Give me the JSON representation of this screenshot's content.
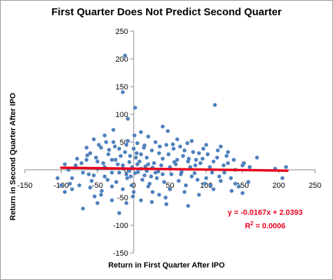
{
  "chart_data": {
    "type": "scatter",
    "title": "First Quarter Does Not Predict Second Quarter",
    "xlabel": "Return in First Quarter After IPO",
    "ylabel": "Return in Second Quarter After IPO",
    "xlim": [
      -150,
      250
    ],
    "ylim": [
      -150,
      250
    ],
    "xticks": [
      -150,
      -100,
      -50,
      0,
      50,
      100,
      150,
      200,
      250
    ],
    "yticks": [
      -150,
      -100,
      -50,
      0,
      50,
      100,
      150,
      200,
      250
    ],
    "xtick_labels": [
      "-150",
      "-100",
      "-50",
      "0",
      "50",
      "100",
      "150",
      "200",
      "250"
    ],
    "ytick_labels": [
      "-150",
      "-100",
      "-50",
      "0",
      "50",
      "100",
      "150",
      "200",
      "250"
    ],
    "grid": false,
    "marker_color": "#4f81bd",
    "trendline": {
      "slope": -0.0167,
      "intercept": 2.0393,
      "x_range": [
        -100,
        212
      ],
      "color": "#e8001c",
      "equation": "y = -0.0167x + 2.0393",
      "r2_label": "R",
      "r2_sup": "2",
      "r2_value": " = 0.0006"
    },
    "points": [
      [
        -12,
        206
      ],
      [
        -15,
        140
      ],
      [
        2,
        112
      ],
      [
        -8,
        92
      ],
      [
        40,
        78
      ],
      [
        112,
        117
      ],
      [
        -28,
        72
      ],
      [
        47,
        70
      ],
      [
        10,
        68
      ],
      [
        -40,
        62
      ],
      [
        20,
        60
      ],
      [
        60,
        55
      ],
      [
        -55,
        55
      ],
      [
        80,
        52
      ],
      [
        -28,
        50
      ],
      [
        30,
        50
      ],
      [
        5,
        48
      ],
      [
        -10,
        45
      ],
      [
        15,
        44
      ],
      [
        45,
        45
      ],
      [
        100,
        45
      ],
      [
        -45,
        40
      ],
      [
        -20,
        38
      ],
      [
        0,
        38
      ],
      [
        25,
        35
      ],
      [
        55,
        38
      ],
      [
        70,
        35
      ],
      [
        90,
        30
      ],
      [
        -60,
        30
      ],
      [
        -35,
        28
      ],
      [
        35,
        30
      ],
      [
        10,
        28
      ],
      [
        -5,
        25
      ],
      [
        120,
        42
      ],
      [
        170,
        22
      ],
      [
        130,
        32
      ],
      [
        -65,
        18
      ],
      [
        -80,
        8
      ],
      [
        -50,
        15
      ],
      [
        -25,
        18
      ],
      [
        40,
        20
      ],
      [
        60,
        18
      ],
      [
        75,
        15
      ],
      [
        95,
        20
      ],
      [
        110,
        15
      ],
      [
        130,
        12
      ],
      [
        150,
        8
      ],
      [
        -40,
        5
      ],
      [
        -15,
        8
      ],
      [
        20,
        10
      ],
      [
        50,
        5
      ],
      [
        85,
        8
      ],
      [
        105,
        5
      ],
      [
        125,
        -5
      ],
      [
        140,
        0
      ],
      [
        160,
        5
      ],
      [
        -70,
        -5
      ],
      [
        -55,
        -10
      ],
      [
        -30,
        -5
      ],
      [
        -10,
        -8
      ],
      [
        15,
        -10
      ],
      [
        30,
        -5
      ],
      [
        65,
        -8
      ],
      [
        80,
        -12
      ],
      [
        100,
        -15
      ],
      [
        120,
        -20
      ],
      [
        140,
        -25
      ],
      [
        195,
        2
      ],
      [
        205,
        -15
      ],
      [
        210,
        5
      ],
      [
        -85,
        -35
      ],
      [
        -95,
        -40
      ],
      [
        -75,
        -28
      ],
      [
        -60,
        -32
      ],
      [
        -45,
        -45
      ],
      [
        -30,
        -30
      ],
      [
        -15,
        -35
      ],
      [
        0,
        -40
      ],
      [
        20,
        -30
      ],
      [
        35,
        -45
      ],
      [
        50,
        -35
      ],
      [
        70,
        -40
      ],
      [
        90,
        -45
      ],
      [
        110,
        -35
      ],
      [
        135,
        -38
      ],
      [
        150,
        -42
      ],
      [
        -70,
        -70
      ],
      [
        -50,
        -60
      ],
      [
        -30,
        -55
      ],
      [
        -10,
        -60
      ],
      [
        10,
        -55
      ],
      [
        25,
        -58
      ],
      [
        45,
        -62
      ],
      [
        75,
        -65
      ],
      [
        -20,
        -78
      ],
      [
        -95,
        10
      ],
      [
        -90,
        0
      ],
      [
        -85,
        -15
      ],
      [
        -65,
        40
      ],
      [
        -48,
        45
      ],
      [
        -38,
        50
      ],
      [
        -52,
        22
      ],
      [
        -42,
        12
      ],
      [
        -36,
        -18
      ],
      [
        -24,
        -22
      ],
      [
        -18,
        25
      ],
      [
        -8,
        52
      ],
      [
        4,
        30
      ],
      [
        8,
        15
      ],
      [
        12,
        -18
      ],
      [
        18,
        22
      ],
      [
        22,
        -25
      ],
      [
        28,
        12
      ],
      [
        32,
        -15
      ],
      [
        38,
        8
      ],
      [
        42,
        -22
      ],
      [
        48,
        28
      ],
      [
        52,
        -8
      ],
      [
        58,
        10
      ],
      [
        62,
        -20
      ],
      [
        68,
        25
      ],
      [
        72,
        -28
      ],
      [
        78,
        5
      ],
      [
        82,
        32
      ],
      [
        88,
        -18
      ],
      [
        92,
        12
      ],
      [
        98,
        -25
      ],
      [
        102,
        28
      ],
      [
        108,
        -5
      ],
      [
        115,
        22
      ],
      [
        118,
        -12
      ],
      [
        124,
        8
      ],
      [
        128,
        25
      ],
      [
        134,
        -15
      ],
      [
        138,
        18
      ],
      [
        145,
        -30
      ],
      [
        152,
        12
      ],
      [
        158,
        -22
      ],
      [
        -2,
        5
      ],
      [
        -4,
        -12
      ],
      [
        6,
        -4
      ],
      [
        -6,
        14
      ],
      [
        3,
        22
      ],
      [
        -3,
        -28
      ],
      [
        1,
        62
      ],
      [
        -1,
        -48
      ],
      [
        14,
        40
      ],
      [
        -12,
        32
      ],
      [
        26,
        -40
      ],
      [
        -26,
        42
      ],
      [
        36,
        42
      ],
      [
        -34,
        36
      ],
      [
        44,
        -50
      ],
      [
        -44,
        -38
      ],
      [
        54,
        46
      ],
      [
        -54,
        -48
      ],
      [
        64,
        42
      ],
      [
        -64,
        26
      ],
      [
        74,
        48
      ],
      [
        -58,
        -20
      ],
      [
        86,
        18
      ],
      [
        -78,
        20
      ],
      [
        96,
        38
      ],
      [
        -88,
        -25
      ],
      [
        106,
        -28
      ],
      [
        -100,
        -28
      ],
      [
        116,
        35
      ],
      [
        -72,
        12
      ],
      [
        -105,
        -15
      ],
      [
        -20,
        -5
      ],
      [
        -14,
        2
      ],
      [
        -6,
        -2
      ],
      [
        2,
        -6
      ],
      [
        10,
        2
      ],
      [
        18,
        -2
      ],
      [
        26,
        4
      ],
      [
        34,
        -3
      ],
      [
        5,
        10
      ],
      [
        -9,
        -15
      ],
      [
        16,
        6
      ],
      [
        -22,
        10
      ],
      [
        24,
        -12
      ],
      [
        -30,
        18
      ],
      [
        40,
        -8
      ],
      [
        -40,
        -12
      ],
      [
        56,
        14
      ],
      [
        -50,
        2
      ],
      [
        66,
        -4
      ],
      [
        -62,
        -8
      ],
      [
        76,
        20
      ],
      [
        84,
        -6
      ]
    ]
  }
}
